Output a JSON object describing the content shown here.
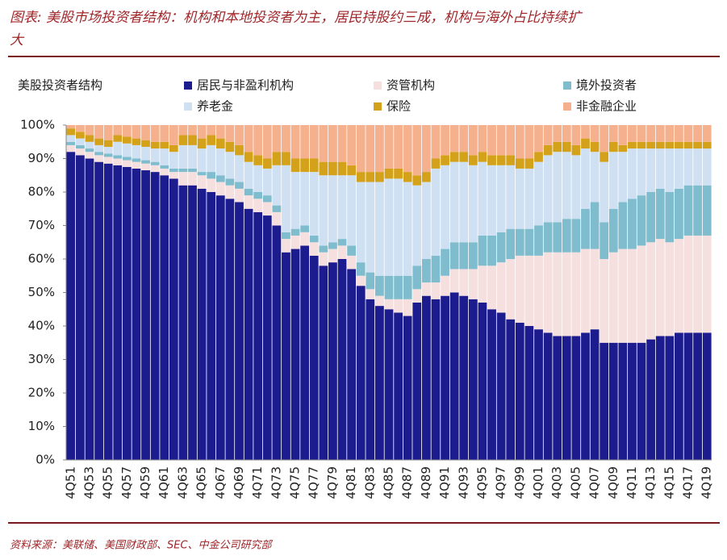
{
  "chart_data": {
    "type": "stacked_bar",
    "title_line1": "图表: 美股市场投资者结构：机构和本地投资者为主，居民持股约三成，机构与海外占比持续扩",
    "title_line2": "大",
    "ylabel": "美股投资者结构",
    "source": "资料来源：美联储、美国财政部、SEC、中金公司研究部",
    "categories": [
      "4Q51",
      null,
      "4Q53",
      null,
      "4Q55",
      null,
      "4Q57",
      null,
      "4Q59",
      null,
      "4Q61",
      null,
      "4Q63",
      null,
      "4Q65",
      null,
      "4Q67",
      null,
      "4Q69",
      null,
      "4Q71",
      null,
      "4Q73",
      null,
      "4Q75",
      null,
      "4Q77",
      null,
      "4Q79",
      null,
      "4Q81",
      null,
      "4Q83",
      null,
      "4Q85",
      null,
      "4Q87",
      null,
      "4Q89",
      null,
      "4Q91",
      null,
      "4Q93",
      null,
      "4Q95",
      null,
      "4Q97",
      null,
      "4Q99",
      null,
      "4Q01",
      null,
      "4Q03",
      null,
      "4Q05",
      null,
      "4Q07",
      null,
      "4Q09",
      null,
      "4Q11",
      null,
      "4Q13",
      null,
      "4Q15",
      null,
      "4Q17",
      null,
      "4Q19"
    ],
    "series": [
      {
        "name": "居民与非盈利机构",
        "color": "#1c1c8f",
        "values": [
          92,
          91,
          90,
          89,
          88.5,
          88,
          87.5,
          87,
          86.5,
          86,
          85,
          84,
          82,
          82,
          81,
          80,
          79,
          78,
          77,
          75,
          74,
          73,
          70,
          62,
          63,
          64,
          61,
          58,
          59,
          60,
          57,
          52,
          48,
          46,
          45,
          44,
          43,
          47,
          49,
          48,
          49,
          50,
          49,
          48,
          47,
          45,
          44,
          42,
          41,
          40,
          39,
          38,
          37,
          37,
          37,
          38,
          39,
          35,
          35,
          35,
          35,
          35,
          36,
          37,
          37,
          38,
          38,
          38,
          38
        ]
      },
      {
        "name": "资管机构",
        "color": "#f6dfdf",
        "values": [
          2,
          2,
          2,
          2,
          2,
          2,
          2,
          2,
          2,
          2,
          2,
          2,
          4,
          4,
          4,
          4,
          4,
          4,
          4,
          4,
          4,
          4,
          4,
          4,
          4,
          4,
          4,
          4,
          4,
          4,
          4,
          3,
          3,
          3,
          3,
          4,
          5,
          4,
          4,
          5,
          6,
          7,
          8,
          9,
          11,
          13,
          15,
          18,
          20,
          21,
          22,
          24,
          25,
          25,
          25,
          25,
          24,
          25,
          27,
          28,
          28,
          29,
          29,
          29,
          28,
          28,
          29,
          29,
          29
        ]
      },
      {
        "name": "境外投资者",
        "color": "#7fbccd",
        "values": [
          1,
          1,
          1,
          1,
          1,
          1,
          1,
          1,
          1,
          1,
          1,
          1,
          1,
          1,
          1,
          2,
          2,
          2,
          2,
          2,
          2,
          2,
          2,
          2,
          2,
          2,
          2,
          2,
          2,
          2,
          3,
          4,
          5,
          6,
          7,
          7,
          7,
          7,
          7,
          8,
          8,
          8,
          8,
          8,
          9,
          9,
          9,
          9,
          8,
          8,
          9,
          9,
          9,
          10,
          10,
          12,
          14,
          11,
          13,
          14,
          15,
          15,
          15,
          15,
          15,
          15,
          15,
          15,
          15
        ]
      },
      {
        "name": "养老金",
        "color": "#cfe0f3",
        "values": [
          2,
          2,
          2,
          2,
          2,
          4,
          4,
          4,
          4,
          4,
          5,
          5,
          7,
          7,
          7,
          8,
          8,
          8,
          8,
          8,
          8,
          8,
          12,
          20,
          17,
          16,
          19,
          21,
          20,
          19,
          21,
          24,
          27,
          28,
          29,
          29,
          28,
          24,
          23,
          26,
          25,
          24,
          24,
          23,
          22,
          21,
          20,
          19,
          18,
          18,
          19,
          20,
          21,
          20,
          19,
          18,
          15,
          18,
          17,
          15,
          15,
          14,
          13,
          12,
          13,
          12,
          11,
          11,
          11
        ]
      },
      {
        "name": "保险",
        "color": "#d4a21a",
        "values": [
          2,
          2,
          2,
          2,
          2,
          2,
          2,
          2,
          2,
          2,
          2,
          2,
          3,
          3,
          3,
          3,
          3,
          3,
          3,
          3,
          3,
          3,
          4,
          4,
          4,
          4,
          4,
          4,
          4,
          4,
          3,
          3,
          3,
          3,
          3,
          3,
          3,
          3,
          3,
          3,
          3,
          3,
          3,
          3,
          3,
          3,
          3,
          3,
          3,
          3,
          3,
          3,
          3,
          3,
          3,
          3,
          3,
          3,
          3,
          2,
          2,
          2,
          2,
          2,
          2,
          2,
          2,
          2,
          2
        ]
      },
      {
        "name": "非金融企业",
        "color": "#f5b08e",
        "values": [
          1,
          2,
          3,
          4,
          4.5,
          3,
          3.5,
          4,
          4.5,
          5,
          5,
          6,
          3,
          3,
          4,
          3,
          4,
          5,
          6,
          8,
          9,
          10,
          8,
          8,
          10,
          10,
          10,
          11,
          11,
          11,
          12,
          14,
          14,
          14,
          13,
          13,
          14,
          15,
          14,
          10,
          9,
          8,
          8,
          9,
          8,
          9,
          9,
          9,
          10,
          10,
          8,
          6,
          5,
          5,
          6,
          4,
          5,
          8,
          5,
          6,
          5,
          5,
          5,
          5,
          5,
          5,
          5,
          5,
          5
        ]
      }
    ],
    "ylim": [
      0,
      100
    ],
    "yticks": [
      {
        "value": 0,
        "label": "0%"
      },
      {
        "value": 10,
        "label": "10%"
      },
      {
        "value": 20,
        "label": "20%"
      },
      {
        "value": 30,
        "label": "30%"
      },
      {
        "value": 40,
        "label": "40%"
      },
      {
        "value": 50,
        "label": "50%"
      },
      {
        "value": 60,
        "label": "60%"
      },
      {
        "value": 70,
        "label": "70%"
      },
      {
        "value": 80,
        "label": "80%"
      },
      {
        "value": 90,
        "label": "90%"
      },
      {
        "value": 100,
        "label": "100%"
      }
    ]
  }
}
